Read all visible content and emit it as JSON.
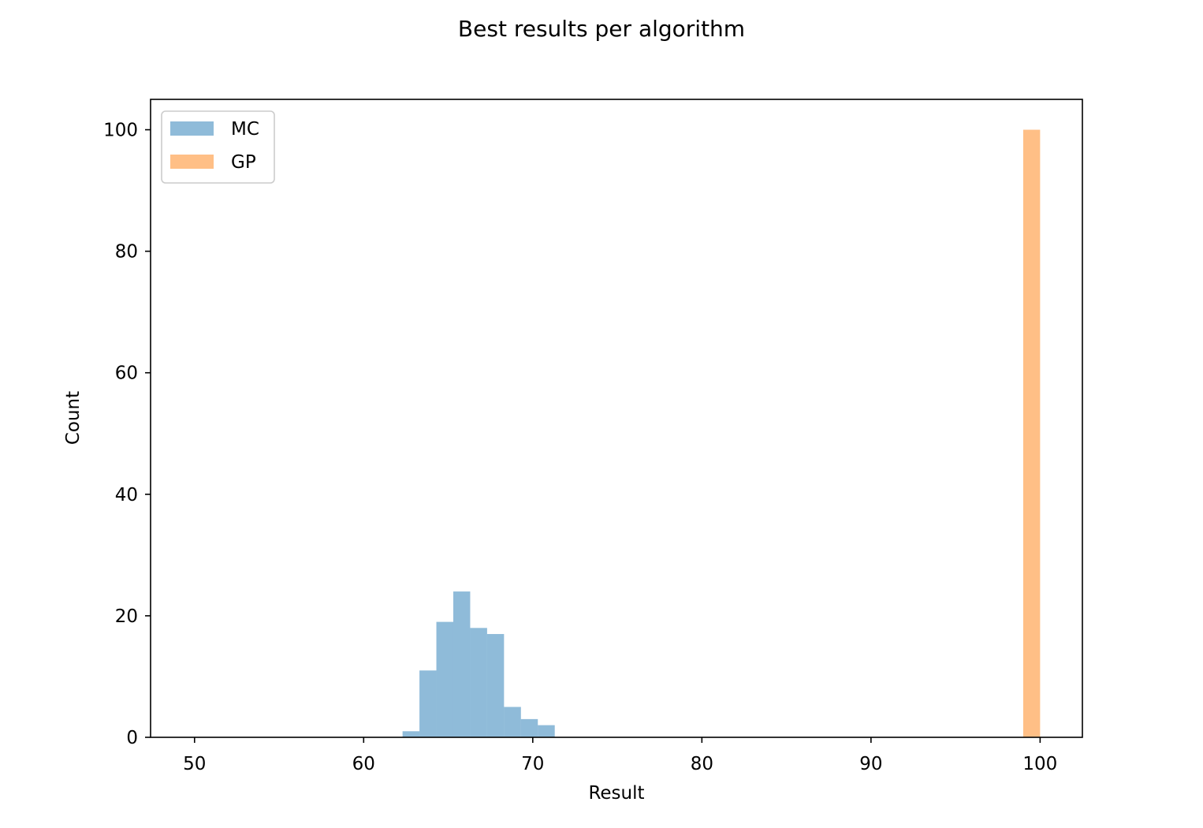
{
  "chart_data": {
    "type": "bar",
    "title": "Best results per algorithm",
    "xlabel": "Result",
    "ylabel": "Count",
    "xlim": [
      47.4,
      102.5
    ],
    "ylim": [
      0,
      105
    ],
    "xticks": [
      50,
      60,
      70,
      80,
      90,
      100
    ],
    "yticks": [
      0,
      20,
      40,
      60,
      80,
      100
    ],
    "grid": false,
    "legend_position": "top-left",
    "series": [
      {
        "name": "MC",
        "color": "#1f77b4",
        "opacity": 0.5,
        "bins": [
          {
            "x0": 62.3,
            "x1": 63.3,
            "count": 1
          },
          {
            "x0": 63.3,
            "x1": 64.3,
            "count": 11
          },
          {
            "x0": 64.3,
            "x1": 65.3,
            "count": 19
          },
          {
            "x0": 65.3,
            "x1": 66.3,
            "count": 24
          },
          {
            "x0": 66.3,
            "x1": 67.3,
            "count": 18
          },
          {
            "x0": 67.3,
            "x1": 68.3,
            "count": 17
          },
          {
            "x0": 68.3,
            "x1": 69.3,
            "count": 5
          },
          {
            "x0": 69.3,
            "x1": 70.3,
            "count": 3
          },
          {
            "x0": 70.3,
            "x1": 71.3,
            "count": 2
          }
        ]
      },
      {
        "name": "GP",
        "color": "#ff7f0e",
        "opacity": 0.5,
        "bins": [
          {
            "x0": 99.0,
            "x1": 100.0,
            "count": 100
          }
        ]
      }
    ]
  }
}
